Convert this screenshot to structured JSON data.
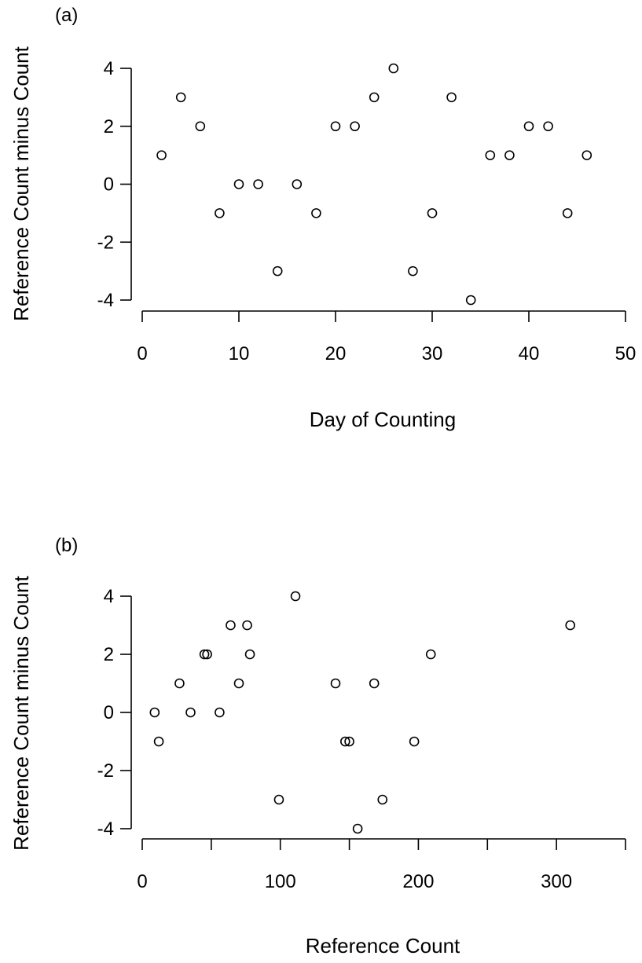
{
  "chart_data": [
    {
      "type": "scatter",
      "panel_label": "(a)",
      "xlabel": "Day of Counting",
      "ylabel": "Reference Count minus Count",
      "xlim": [
        0,
        50
      ],
      "ylim": [
        -4,
        4
      ],
      "xticks": [
        0,
        10,
        20,
        30,
        40,
        50
      ],
      "yticks": [
        -4,
        -2,
        0,
        2,
        4
      ],
      "grid": false,
      "points": [
        {
          "x": 2,
          "y": 1
        },
        {
          "x": 4,
          "y": 3
        },
        {
          "x": 6,
          "y": 2
        },
        {
          "x": 8,
          "y": -1
        },
        {
          "x": 10,
          "y": 0
        },
        {
          "x": 12,
          "y": 0
        },
        {
          "x": 14,
          "y": -3
        },
        {
          "x": 16,
          "y": 0
        },
        {
          "x": 18,
          "y": -1
        },
        {
          "x": 20,
          "y": 2
        },
        {
          "x": 22,
          "y": 2
        },
        {
          "x": 24,
          "y": 3
        },
        {
          "x": 26,
          "y": 4
        },
        {
          "x": 28,
          "y": -3
        },
        {
          "x": 30,
          "y": -1
        },
        {
          "x": 32,
          "y": 3
        },
        {
          "x": 34,
          "y": -4
        },
        {
          "x": 36,
          "y": 1
        },
        {
          "x": 38,
          "y": 1
        },
        {
          "x": 40,
          "y": 2
        },
        {
          "x": 42,
          "y": 2
        },
        {
          "x": 44,
          "y": -1
        },
        {
          "x": 46,
          "y": 1
        }
      ]
    },
    {
      "type": "scatter",
      "panel_label": "(b)",
      "xlabel": "Reference Count",
      "ylabel": "Reference Count minus Count",
      "xlim": [
        0,
        350
      ],
      "ylim": [
        -4,
        4
      ],
      "xticks": [
        0,
        50,
        100,
        150,
        200,
        250,
        300,
        350
      ],
      "xtick_labels": [
        "0",
        "",
        "100",
        "",
        "200",
        "",
        "300",
        ""
      ],
      "yticks": [
        -4,
        -2,
        0,
        2,
        4
      ],
      "grid": false,
      "points": [
        {
          "x": 9,
          "y": 0
        },
        {
          "x": 12,
          "y": -1
        },
        {
          "x": 27,
          "y": 1
        },
        {
          "x": 35,
          "y": 0
        },
        {
          "x": 45,
          "y": 2
        },
        {
          "x": 47,
          "y": 2
        },
        {
          "x": 56,
          "y": 0
        },
        {
          "x": 64,
          "y": 3
        },
        {
          "x": 70,
          "y": 1
        },
        {
          "x": 76,
          "y": 3
        },
        {
          "x": 78,
          "y": 2
        },
        {
          "x": 99,
          "y": -3
        },
        {
          "x": 111,
          "y": 4
        },
        {
          "x": 140,
          "y": 1
        },
        {
          "x": 147,
          "y": -1
        },
        {
          "x": 150,
          "y": -1
        },
        {
          "x": 156,
          "y": -4
        },
        {
          "x": 168,
          "y": 1
        },
        {
          "x": 174,
          "y": -3
        },
        {
          "x": 197,
          "y": -1
        },
        {
          "x": 209,
          "y": 2
        },
        {
          "x": 310,
          "y": 3
        }
      ]
    }
  ]
}
